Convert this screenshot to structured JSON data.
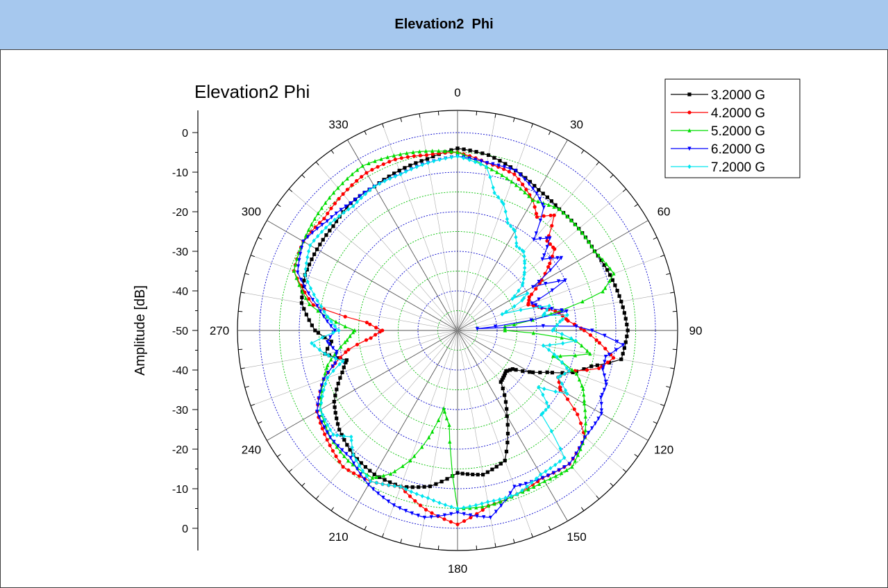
{
  "header": {
    "title": "Elevation2  Phi"
  },
  "chart_data": {
    "type": "polar-line",
    "title": "Elevation2 Phi",
    "ylabel": "Amplitude [dB]",
    "r_range": [
      -50,
      0
    ],
    "angle_direction": "clockwise",
    "angle_zero": "top",
    "angle_ticks": [
      "0",
      "30",
      "60",
      "90",
      "120",
      "150",
      "180",
      "210",
      "240",
      "270",
      "300",
      "330"
    ],
    "r_tick_labels_top": [
      "0",
      "-10",
      "-20",
      "-30",
      "-40",
      "-50"
    ],
    "r_tick_labels_bottom": [
      "-40",
      "-30",
      "-20",
      "-10",
      "0"
    ],
    "radial_rings_color_inner": "#00c000",
    "radial_rings_color_outer": "#0000cc",
    "legend_position": "top-right",
    "series": [
      {
        "name": "3.2000 G",
        "color": "#000000",
        "marker": "square",
        "theta": [
          0,
          10,
          20,
          30,
          40,
          50,
          60,
          70,
          80,
          90,
          100,
          105,
          110,
          115,
          120,
          125,
          130,
          140,
          150,
          160,
          170,
          180,
          190,
          200,
          210,
          220,
          230,
          240,
          250,
          255,
          260,
          265,
          270,
          280,
          290,
          300,
          310,
          320,
          330,
          340,
          350,
          360
        ],
        "r": [
          -4,
          -5,
          -7,
          -9,
          -10,
          -10,
          -10,
          -9,
          -8,
          -7,
          -8,
          -15,
          -19,
          -25,
          -29,
          -33,
          -34,
          -33,
          -25,
          -15,
          -13,
          -14,
          -10,
          -8,
          -8,
          -9,
          -11,
          -14,
          -19,
          -21,
          -16,
          -18,
          -14,
          -10,
          -9,
          -9,
          -9,
          -8,
          -8,
          -7,
          -6,
          -4
        ]
      },
      {
        "name": "4.2000 G",
        "color": "#ff0000",
        "marker": "circle",
        "theta": [
          0,
          10,
          20,
          30,
          35,
          40,
          45,
          50,
          55,
          60,
          65,
          70,
          75,
          80,
          85,
          90,
          95,
          100,
          105,
          110,
          115,
          120,
          125,
          130,
          140,
          150,
          160,
          170,
          180,
          190,
          200,
          210,
          220,
          230,
          240,
          250,
          255,
          260,
          265,
          270,
          275,
          280,
          290,
          300,
          310,
          320,
          330,
          340,
          350,
          360
        ],
        "r": [
          -5,
          -7,
          -8,
          -12,
          -15,
          -12,
          -18,
          -18,
          -22,
          -26,
          -30,
          -31,
          -28,
          -24,
          -22,
          -18,
          -14,
          -10,
          -13,
          -20,
          -22,
          -20,
          -13,
          -8,
          -6,
          -7,
          -6,
          -5,
          -1,
          -4,
          -8,
          -6,
          -5,
          -7,
          -9,
          -14,
          -18,
          -22,
          -28,
          -31,
          -27,
          -13,
          -6,
          -5,
          -6,
          -5,
          -4,
          -4,
          -5,
          -5
        ]
      },
      {
        "name": "5.2000 G",
        "color": "#00dd00",
        "marker": "triangle-up",
        "theta": [
          0,
          10,
          20,
          30,
          40,
          50,
          60,
          70,
          75,
          80,
          85,
          90,
          95,
          100,
          105,
          110,
          115,
          120,
          130,
          140,
          150,
          160,
          170,
          180,
          185,
          190,
          195,
          200,
          205,
          210,
          220,
          230,
          240,
          250,
          255,
          260,
          265,
          270,
          280,
          290,
          300,
          310,
          320,
          330,
          340,
          350,
          360
        ],
        "r": [
          -5,
          -8,
          -10,
          -12,
          -10,
          -10,
          -10,
          -8,
          -12,
          -26,
          -38,
          -38,
          -20,
          -16,
          -25,
          -18,
          -15,
          -13,
          -8,
          -5,
          -6,
          -6,
          -5,
          -5,
          -26,
          -30,
          -22,
          -15,
          -10,
          -7,
          -7,
          -8,
          -10,
          -14,
          -16,
          -19,
          -22,
          -24,
          -12,
          -6,
          -5,
          -4,
          -3,
          -2,
          -3,
          -4,
          -5
        ]
      },
      {
        "name": "6.2000 G",
        "color": "#0000ff",
        "marker": "triangle-down",
        "theta": [
          0,
          10,
          20,
          30,
          35,
          40,
          45,
          50,
          55,
          60,
          65,
          70,
          75,
          80,
          85,
          88,
          90,
          95,
          100,
          105,
          110,
          115,
          120,
          130,
          140,
          150,
          160,
          170,
          180,
          190,
          200,
          210,
          220,
          230,
          240,
          250,
          255,
          260,
          265,
          270,
          280,
          290,
          300,
          310,
          320,
          330,
          340,
          350,
          360
        ],
        "r": [
          -6,
          -7,
          -7,
          -10,
          -12,
          -20,
          -17,
          -22,
          -18,
          -28,
          -20,
          -30,
          -28,
          -22,
          -45,
          -20,
          -16,
          -8,
          -12,
          -12,
          -10,
          -10,
          -8,
          -8,
          -6,
          -7,
          -8,
          -2,
          -4,
          -2,
          -3,
          -5,
          -8,
          -8,
          -9,
          -14,
          -18,
          -19,
          -17,
          -19,
          -14,
          -7,
          -5,
          -7,
          -8,
          -8,
          -8,
          -7,
          -6
        ]
      },
      {
        "name": "7.2000 G",
        "color": "#00e5ee",
        "marker": "diamond",
        "theta": [
          0,
          10,
          15,
          20,
          25,
          30,
          35,
          40,
          45,
          50,
          55,
          60,
          62,
          65,
          70,
          75,
          80,
          82,
          85,
          90,
          95,
          100,
          105,
          110,
          115,
          120,
          125,
          130,
          135,
          140,
          150,
          160,
          170,
          180,
          190,
          200,
          210,
          220,
          225,
          230,
          240,
          250,
          255,
          260,
          265,
          270,
          280,
          290,
          300,
          310,
          320,
          330,
          340,
          350,
          360
        ],
        "r": [
          -6,
          -8,
          -14,
          -16,
          -20,
          -21,
          -24,
          -24,
          -26,
          -28,
          -30,
          -34,
          -30,
          -32,
          -38,
          -26,
          -28,
          -22,
          -24,
          -26,
          -20,
          -28,
          -24,
          -20,
          -22,
          -18,
          -25,
          -20,
          -20,
          -8,
          -8,
          -6,
          -6,
          -5,
          -7,
          -8,
          -6,
          -9,
          -12,
          -9,
          -10,
          -15,
          -20,
          -16,
          -13,
          -20,
          -15,
          -9,
          -7,
          -8,
          -9,
          -8,
          -8,
          -7,
          -6
        ]
      }
    ]
  }
}
